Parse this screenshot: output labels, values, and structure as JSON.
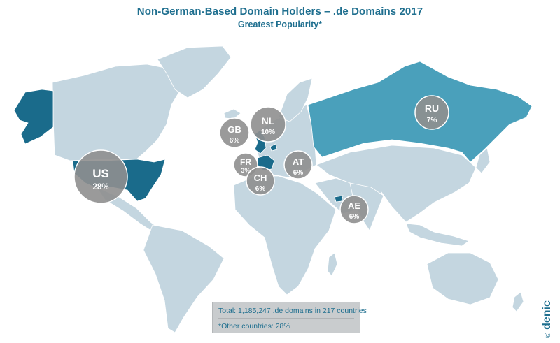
{
  "header": {
    "title": "Non-German-Based Domain Holders – .de Domains 2017",
    "subtitle": "Greatest Popularity*"
  },
  "colors": {
    "land": "#c4d6e0",
    "highlight_dark": "#1a6b8b",
    "highlight_medium": "#4aa0bb",
    "bubble": "#8f8f8f",
    "title": "#1f6f8f"
  },
  "bubbles": [
    {
      "code": "US",
      "value": "28%"
    },
    {
      "code": "GB",
      "value": "6%"
    },
    {
      "code": "NL",
      "value": "10%"
    },
    {
      "code": "FR",
      "value": "3%"
    },
    {
      "code": "CH",
      "value": "6%"
    },
    {
      "code": "AT",
      "value": "6%"
    },
    {
      "code": "AE",
      "value": "6%"
    },
    {
      "code": "RU",
      "value": "7%"
    }
  ],
  "info": {
    "total": "Total: 1,185,247 .de domains in 217 countries",
    "other": "*Other countries: 28%"
  },
  "logo": {
    "copyright": "©",
    "brand": "denic"
  }
}
